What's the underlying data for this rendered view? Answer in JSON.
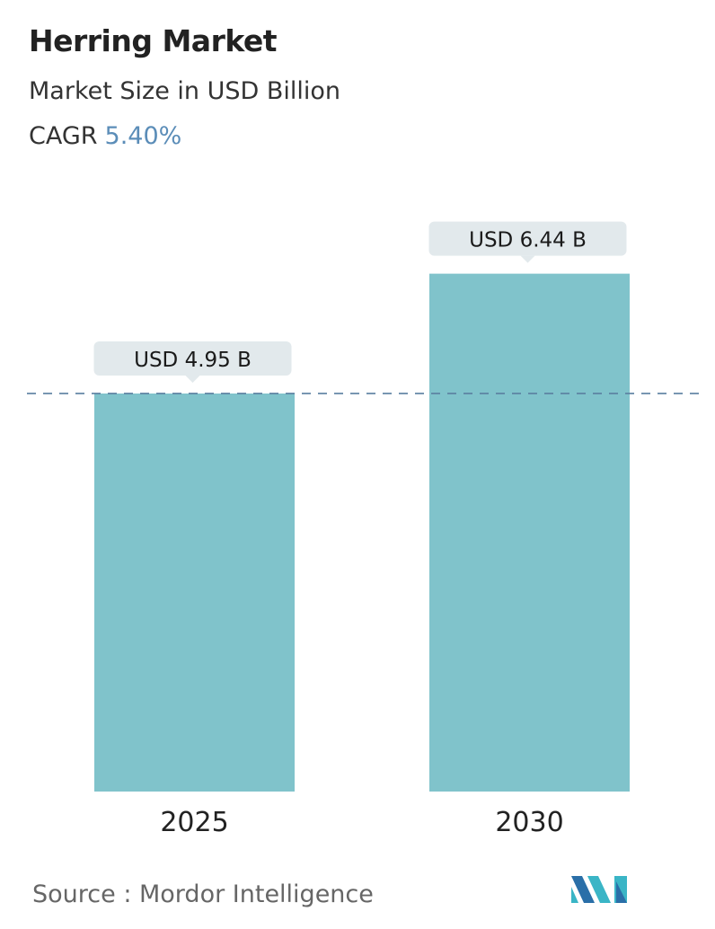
{
  "header": {
    "title": "Herring Market",
    "subtitle": "Market Size in USD Billion",
    "cagr_label": "CAGR",
    "cagr_value": "5.40%"
  },
  "chart_data": {
    "type": "bar",
    "categories": [
      "2025",
      "2030"
    ],
    "values": [
      4.95,
      6.44
    ],
    "data_labels": [
      "USD 4.95 B",
      "USD 6.44 B"
    ],
    "unit": "USD Billion",
    "reference_line": {
      "value": 4.95,
      "style": "dashed"
    },
    "grid": false,
    "legend": "none",
    "colors": {
      "bar_top": "#5f8fb6",
      "bar_bottom": "#80c3cb",
      "label_bg": "#e2e9ec",
      "cagr": "#5b8db8",
      "reference_line": "#5a7fa0"
    }
  },
  "footer": {
    "source": "Source :  Mordor Intelligence",
    "logo_text": "Mordor Intelligence"
  }
}
